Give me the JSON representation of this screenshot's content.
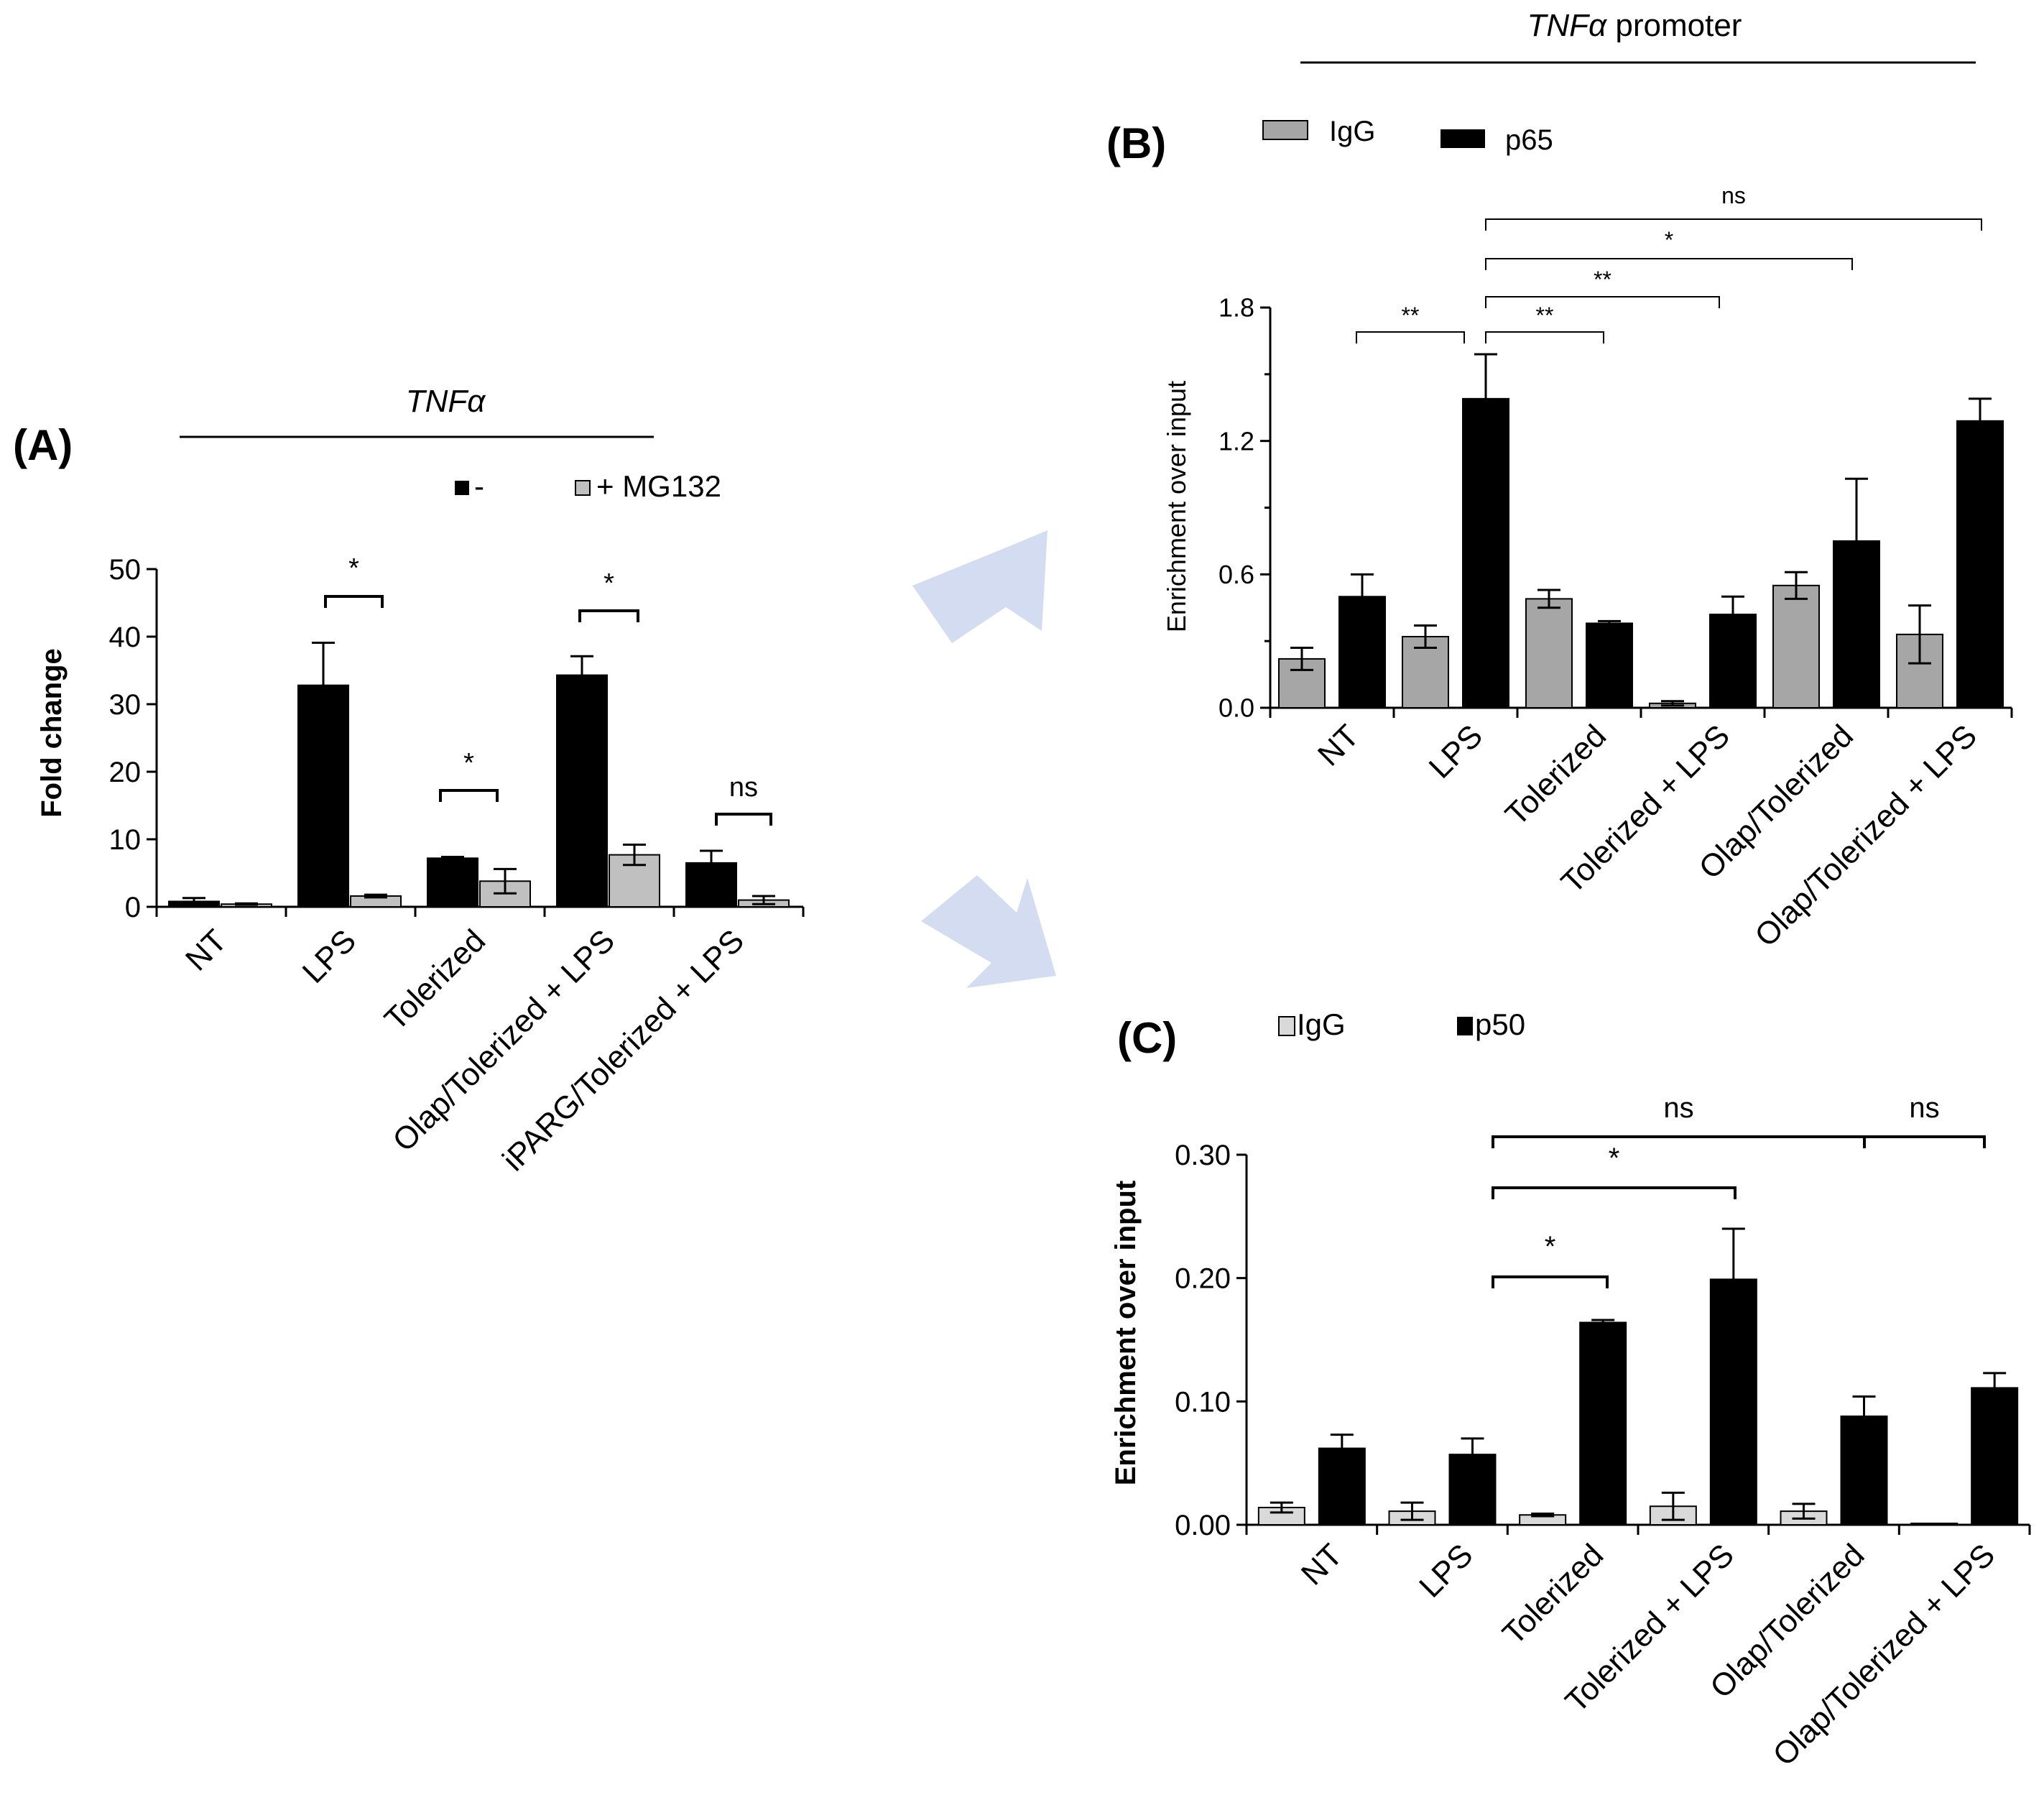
{
  "arrows": {
    "color": "#D3DCF0"
  },
  "chart_data": [
    {
      "id": "A",
      "type": "bar",
      "panel_label": "(A)",
      "title": "TNFα",
      "title_italic": true,
      "ylabel": "Fold change",
      "xlabel": "",
      "ylim": [
        0,
        50
      ],
      "yticks": [
        0,
        10,
        20,
        30,
        40,
        50
      ],
      "ytick_labels": [
        "0",
        "10",
        "20",
        "30",
        "40",
        "50"
      ],
      "categories": [
        "NT",
        "LPS",
        "Tolerized",
        "Olap/Tolerized + LPS",
        "iPARG/Tolerized + LPS"
      ],
      "series": [
        {
          "name": "-",
          "legend_label": "-",
          "color": "#000000",
          "values": [
            0.8,
            32.8,
            7.2,
            34.3,
            6.5
          ],
          "errors": [
            0.5,
            6.3,
            0.2,
            2.8,
            1.8
          ]
        },
        {
          "name": "+ MG132",
          "legend_label": "+ MG132",
          "color": "#C0C0C0",
          "values": [
            0.4,
            1.6,
            3.8,
            7.7,
            1.0
          ],
          "errors": [
            0.1,
            0.2,
            1.8,
            1.5,
            0.6
          ]
        }
      ],
      "significance": [
        {
          "label": "*",
          "from": 1,
          "to": 1
        },
        {
          "label": "*",
          "from": 2,
          "to": 2
        },
        {
          "label": "*",
          "from": 3,
          "to": 3
        },
        {
          "label": "ns",
          "from": 4,
          "to": 4
        }
      ]
    },
    {
      "id": "B",
      "type": "bar",
      "panel_label": "(B)",
      "title": "TNFα promoter",
      "title_italic_part": "TNFα",
      "title_plain_part": " promoter",
      "ylabel": "Enrichment over input",
      "xlabel": "",
      "ylim": [
        0,
        1.8
      ],
      "yticks": [
        0,
        0.6,
        1.2,
        1.8
      ],
      "ytick_labels": [
        "0.0",
        "0.6",
        "1.2",
        "1.8"
      ],
      "categories": [
        "NT",
        "LPS",
        "Tolerized",
        "Tolerized + LPS",
        "Olap/Tolerized",
        "Olap/Tolerized + LPS"
      ],
      "series": [
        {
          "name": "IgG",
          "legend_label": "IgG",
          "color": "#A6A6A6",
          "values": [
            0.22,
            0.32,
            0.49,
            0.02,
            0.55,
            0.33
          ],
          "errors": [
            0.05,
            0.05,
            0.04,
            0.01,
            0.06,
            0.13
          ]
        },
        {
          "name": "p65",
          "legend_label": "p65",
          "color": "#000000",
          "values": [
            0.5,
            1.39,
            0.38,
            0.42,
            0.75,
            1.29
          ],
          "errors": [
            0.1,
            0.2,
            0.01,
            0.08,
            0.28,
            0.1
          ]
        }
      ],
      "significance": [
        {
          "label": "**",
          "from": 0,
          "to": 1
        },
        {
          "label": "**",
          "from": 1,
          "to": 2
        },
        {
          "label": "**",
          "from": 1,
          "to": 3
        },
        {
          "label": "*",
          "from": 1,
          "to": 4
        },
        {
          "label": "ns",
          "from": 1,
          "to": 5
        }
      ]
    },
    {
      "id": "C",
      "type": "bar",
      "panel_label": "(C)",
      "ylabel": "Enrichment over input",
      "xlabel": "",
      "ylim": [
        0,
        0.3
      ],
      "yticks": [
        0,
        0.1,
        0.2,
        0.3
      ],
      "ytick_labels": [
        "0.00",
        "0.10",
        "0.20",
        "0.30"
      ],
      "categories": [
        "NT",
        "LPS",
        "Tolerized",
        "Tolerized + LPS",
        "Olap/Tolerized",
        "Olap/Tolerized + LPS"
      ],
      "series": [
        {
          "name": "IgG",
          "legend_label": "IgG",
          "color": "#D9D9D9",
          "values": [
            0.014,
            0.011,
            0.008,
            0.015,
            0.011,
            0.001
          ],
          "errors": [
            0.004,
            0.007,
            0.001,
            0.011,
            0.006,
            0.0
          ]
        },
        {
          "name": "p50",
          "legend_label": "p50",
          "color": "#000000",
          "values": [
            0.062,
            0.057,
            0.164,
            0.199,
            0.088,
            0.111
          ],
          "errors": [
            0.011,
            0.013,
            0.002,
            0.041,
            0.016,
            0.012
          ]
        }
      ],
      "significance": [
        {
          "label": "*",
          "from": 1,
          "to": 2
        },
        {
          "label": "*",
          "from": 1,
          "to": 3
        },
        {
          "label": "ns",
          "from": 1,
          "to": 4
        },
        {
          "label": "ns",
          "from": 4,
          "to": 5
        }
      ]
    }
  ]
}
